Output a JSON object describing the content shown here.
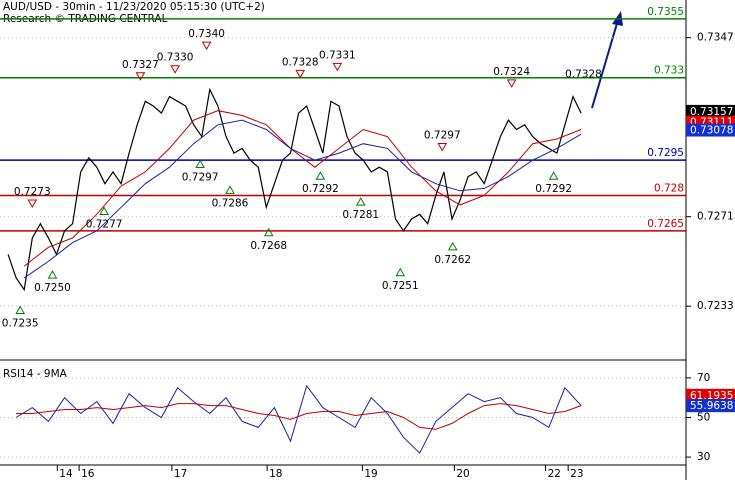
{
  "chart_data": [
    {
      "type": "line",
      "title": "AUD/USD - 30min - 11/23/2020 05:15:30 (UTC+2)",
      "subtitle": "Research © TRADING CENTRAL",
      "xlim": [
        0,
        85
      ],
      "ylim": [
        0.7211,
        0.7363
      ],
      "yticks": [
        0.7233,
        0.7271,
        0.7347
      ],
      "grid": true,
      "xticks": [
        {
          "value": 7.1,
          "label": "14"
        },
        {
          "value": 9.8,
          "label": "16"
        },
        {
          "value": 21.3,
          "label": "17"
        },
        {
          "value": 33.1,
          "label": "18"
        },
        {
          "value": 44.9,
          "label": "19"
        },
        {
          "value": 56.3,
          "label": "20"
        },
        {
          "value": 67.6,
          "label": "22"
        },
        {
          "value": 70.4,
          "label": "23"
        }
      ],
      "x": [
        1,
        2,
        3,
        4,
        5,
        6,
        7,
        8,
        9,
        10,
        11,
        12,
        13,
        14,
        15,
        16,
        17,
        18,
        19,
        20,
        21,
        22,
        23,
        24,
        25,
        26,
        27,
        28,
        29,
        30,
        31,
        32,
        33,
        34,
        35,
        36,
        37,
        38,
        39,
        40,
        41,
        42,
        43,
        44,
        45,
        46,
        47,
        48,
        49,
        50,
        51,
        52,
        53,
        54,
        55,
        56,
        57,
        58,
        59,
        60,
        61,
        62,
        63,
        64,
        65,
        66,
        67,
        68,
        69,
        70,
        71,
        72
      ],
      "series": [
        {
          "color": "#000000",
          "values": [
            0.7255,
            0.7245,
            0.724,
            0.7262,
            0.7268,
            0.7262,
            0.7255,
            0.7265,
            0.7268,
            0.729,
            0.7296,
            0.7292,
            0.7285,
            0.729,
            0.7285,
            0.7298,
            0.731,
            0.732,
            0.7318,
            0.7315,
            0.7322,
            0.732,
            0.7318,
            0.731,
            0.7305,
            0.7325,
            0.7318,
            0.7305,
            0.7298,
            0.73,
            0.7295,
            0.7292,
            0.7275,
            0.7285,
            0.7295,
            0.7298,
            0.7315,
            0.7318,
            0.7308,
            0.7298,
            0.732,
            0.7318,
            0.7305,
            0.7298,
            0.7295,
            0.729,
            0.7292,
            0.729,
            0.727,
            0.7265,
            0.727,
            0.7272,
            0.7268,
            0.728,
            0.729,
            0.727,
            0.7278,
            0.7288,
            0.729,
            0.7285,
            0.7295,
            0.7305,
            0.7312,
            0.7308,
            0.731,
            0.7305,
            0.7302,
            0.73,
            0.7298,
            0.731,
            0.7322,
            0.7315
          ]
        },
        {
          "color": "#c00000",
          "x": [
            3,
            6,
            9,
            12,
            15,
            18,
            21,
            24,
            27,
            30,
            33,
            36,
            39,
            42,
            45,
            48,
            51,
            54,
            57,
            60,
            63,
            66,
            69,
            72
          ],
          "values": [
            0.725,
            0.7258,
            0.7262,
            0.7272,
            0.7284,
            0.729,
            0.73,
            0.7312,
            0.7316,
            0.7314,
            0.731,
            0.73,
            0.7292,
            0.73,
            0.7308,
            0.7305,
            0.7292,
            0.7282,
            0.7276,
            0.728,
            0.729,
            0.7302,
            0.7304,
            0.7308
          ]
        },
        {
          "color": "#1f1f9f",
          "x": [
            3,
            6,
            9,
            12,
            15,
            18,
            21,
            24,
            27,
            30,
            33,
            36,
            39,
            42,
            45,
            48,
            51,
            54,
            57,
            60,
            63,
            66,
            69,
            72
          ],
          "values": [
            0.7245,
            0.7252,
            0.726,
            0.7265,
            0.7275,
            0.7285,
            0.7292,
            0.7302,
            0.731,
            0.7312,
            0.7308,
            0.73,
            0.7295,
            0.7298,
            0.7302,
            0.73,
            0.729,
            0.7285,
            0.7282,
            0.7283,
            0.7288,
            0.7295,
            0.73,
            0.7306
          ]
        }
      ],
      "levels": [
        {
          "value": 0.7355,
          "color": "#008000"
        },
        {
          "value": 0.733,
          "color": "#008000"
        },
        {
          "value": 0.7295,
          "color": "#0000a0"
        },
        {
          "value": 0.728,
          "color": "#c00000"
        },
        {
          "value": 0.7265,
          "color": "#c00000"
        }
      ],
      "price_tags": [
        {
          "value": 0.73157,
          "color": "#000000"
        },
        {
          "value": 0.73111,
          "color": "#e00000"
        },
        {
          "value": 0.73078,
          "color": "#1030d0"
        }
      ],
      "annotations": [
        {
          "x": 2.5,
          "value": 0.7235,
          "label": "0.7235",
          "kind": "trough"
        },
        {
          "x": 4,
          "value": 0.7273,
          "label": "0.7273",
          "kind": "peak"
        },
        {
          "x": 6.5,
          "value": 0.725,
          "label": "0.7250",
          "kind": "trough"
        },
        {
          "x": 12.9,
          "value": 0.7277,
          "label": "0.7277",
          "kind": "trough"
        },
        {
          "x": 17.4,
          "value": 0.7327,
          "label": "0.7327",
          "kind": "peak"
        },
        {
          "x": 21.7,
          "value": 0.733,
          "label": "0.7330",
          "kind": "peak"
        },
        {
          "x": 25.6,
          "value": 0.734,
          "label": "0.7340",
          "kind": "peak"
        },
        {
          "x": 24.8,
          "value": 0.7297,
          "label": "0.7297",
          "kind": "trough"
        },
        {
          "x": 28.5,
          "value": 0.7286,
          "label": "0.7286",
          "kind": "trough"
        },
        {
          "x": 33.3,
          "value": 0.7268,
          "label": "0.7268",
          "kind": "trough"
        },
        {
          "x": 37.2,
          "value": 0.7328,
          "label": "0.7328",
          "kind": "peak"
        },
        {
          "x": 39.7,
          "value": 0.7292,
          "label": "0.7292",
          "kind": "trough"
        },
        {
          "x": 41.8,
          "value": 0.7331,
          "label": "0.7331",
          "kind": "peak"
        },
        {
          "x": 44.7,
          "value": 0.7281,
          "label": "0.7281",
          "kind": "trough"
        },
        {
          "x": 49.6,
          "value": 0.7251,
          "label": "0.7251",
          "kind": "trough"
        },
        {
          "x": 54.8,
          "value": 0.7297,
          "label": "0.7297",
          "kind": "peak"
        },
        {
          "x": 56.1,
          "value": 0.7262,
          "label": "0.7262",
          "kind": "trough"
        },
        {
          "x": 63.4,
          "value": 0.7324,
          "label": "0.7324",
          "kind": "peak"
        },
        {
          "x": 68.6,
          "value": 0.7292,
          "label": "0.7292",
          "kind": "trough"
        },
        {
          "x": 72.3,
          "value": 0.7328,
          "label": "0.7328",
          "kind": "label"
        }
      ]
    },
    {
      "type": "line",
      "title": "RSI14 - 9MA",
      "xlim": [
        0,
        85
      ],
      "ylim": [
        26,
        78
      ],
      "yticks": [
        30,
        50,
        70
      ],
      "grid": true,
      "x": [
        2,
        4,
        6,
        8,
        10,
        12,
        14,
        16,
        18,
        20,
        22,
        24,
        26,
        28,
        30,
        32,
        34,
        36,
        38,
        40,
        42,
        44,
        46,
        48,
        50,
        52,
        54,
        56,
        58,
        60,
        62,
        64,
        66,
        68,
        70,
        72
      ],
      "series": [
        {
          "color": "#1f1f9f",
          "values": [
            50,
            55,
            48,
            60,
            52,
            58,
            47,
            62,
            55,
            50,
            65,
            58,
            52,
            60,
            48,
            45,
            55,
            38,
            66,
            55,
            50,
            45,
            60,
            52,
            40,
            32,
            48,
            55,
            62,
            58,
            60,
            52,
            50,
            45,
            65,
            56
          ]
        },
        {
          "color": "#c00000",
          "values": [
            52,
            52,
            53,
            54,
            54,
            55,
            54,
            55,
            56,
            55,
            57,
            57,
            56,
            56,
            54,
            52,
            51,
            49,
            52,
            53,
            53,
            51,
            52,
            53,
            50,
            45,
            44,
            47,
            52,
            56,
            57,
            56,
            54,
            52,
            53,
            56
          ]
        }
      ],
      "price_tags": [
        {
          "value": 61.1935,
          "color": "#e00000"
        },
        {
          "value": 55.9638,
          "color": "#1030d0"
        }
      ]
    }
  ]
}
